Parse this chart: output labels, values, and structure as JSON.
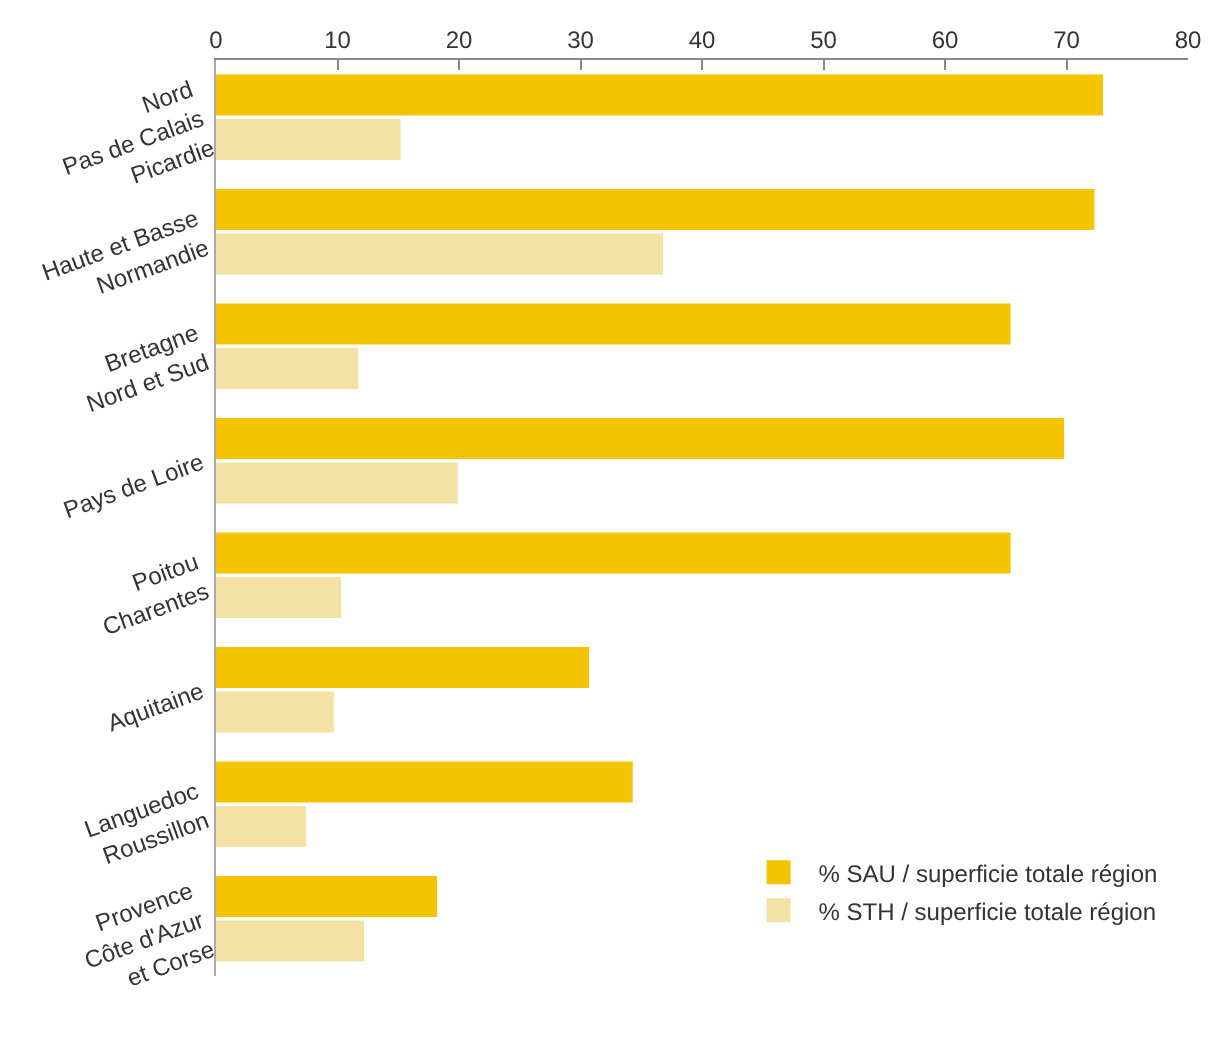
{
  "chart_data": {
    "type": "bar",
    "orientation": "horizontal",
    "categories": [
      "Nord\nPas de Calais\nPicardie",
      "Haute et Basse\nNormandie",
      "Bretagne\nNord et Sud",
      "Pays de Loire",
      "Poitou\nCharentes",
      "Aquitaine",
      "Languedoc\nRoussillon",
      "Provence\nCôte d'Azur\net Corse"
    ],
    "series": [
      {
        "name": "% SAU / superficie totale région",
        "color": "#f5c400",
        "values": [
          73,
          72.3,
          65.4,
          69.8,
          65.4,
          30.7,
          34.3,
          18.2
        ]
      },
      {
        "name": "% STH / superficie totale région",
        "color": "#f3e2a4",
        "values": [
          15.2,
          36.8,
          11.7,
          19.9,
          10.3,
          9.7,
          7.4,
          12.2
        ]
      }
    ],
    "xlim": [
      0,
      80
    ],
    "xticks": [
      0,
      10,
      20,
      30,
      40,
      50,
      60,
      70,
      80
    ],
    "grid": false,
    "legend": "bottom right"
  }
}
